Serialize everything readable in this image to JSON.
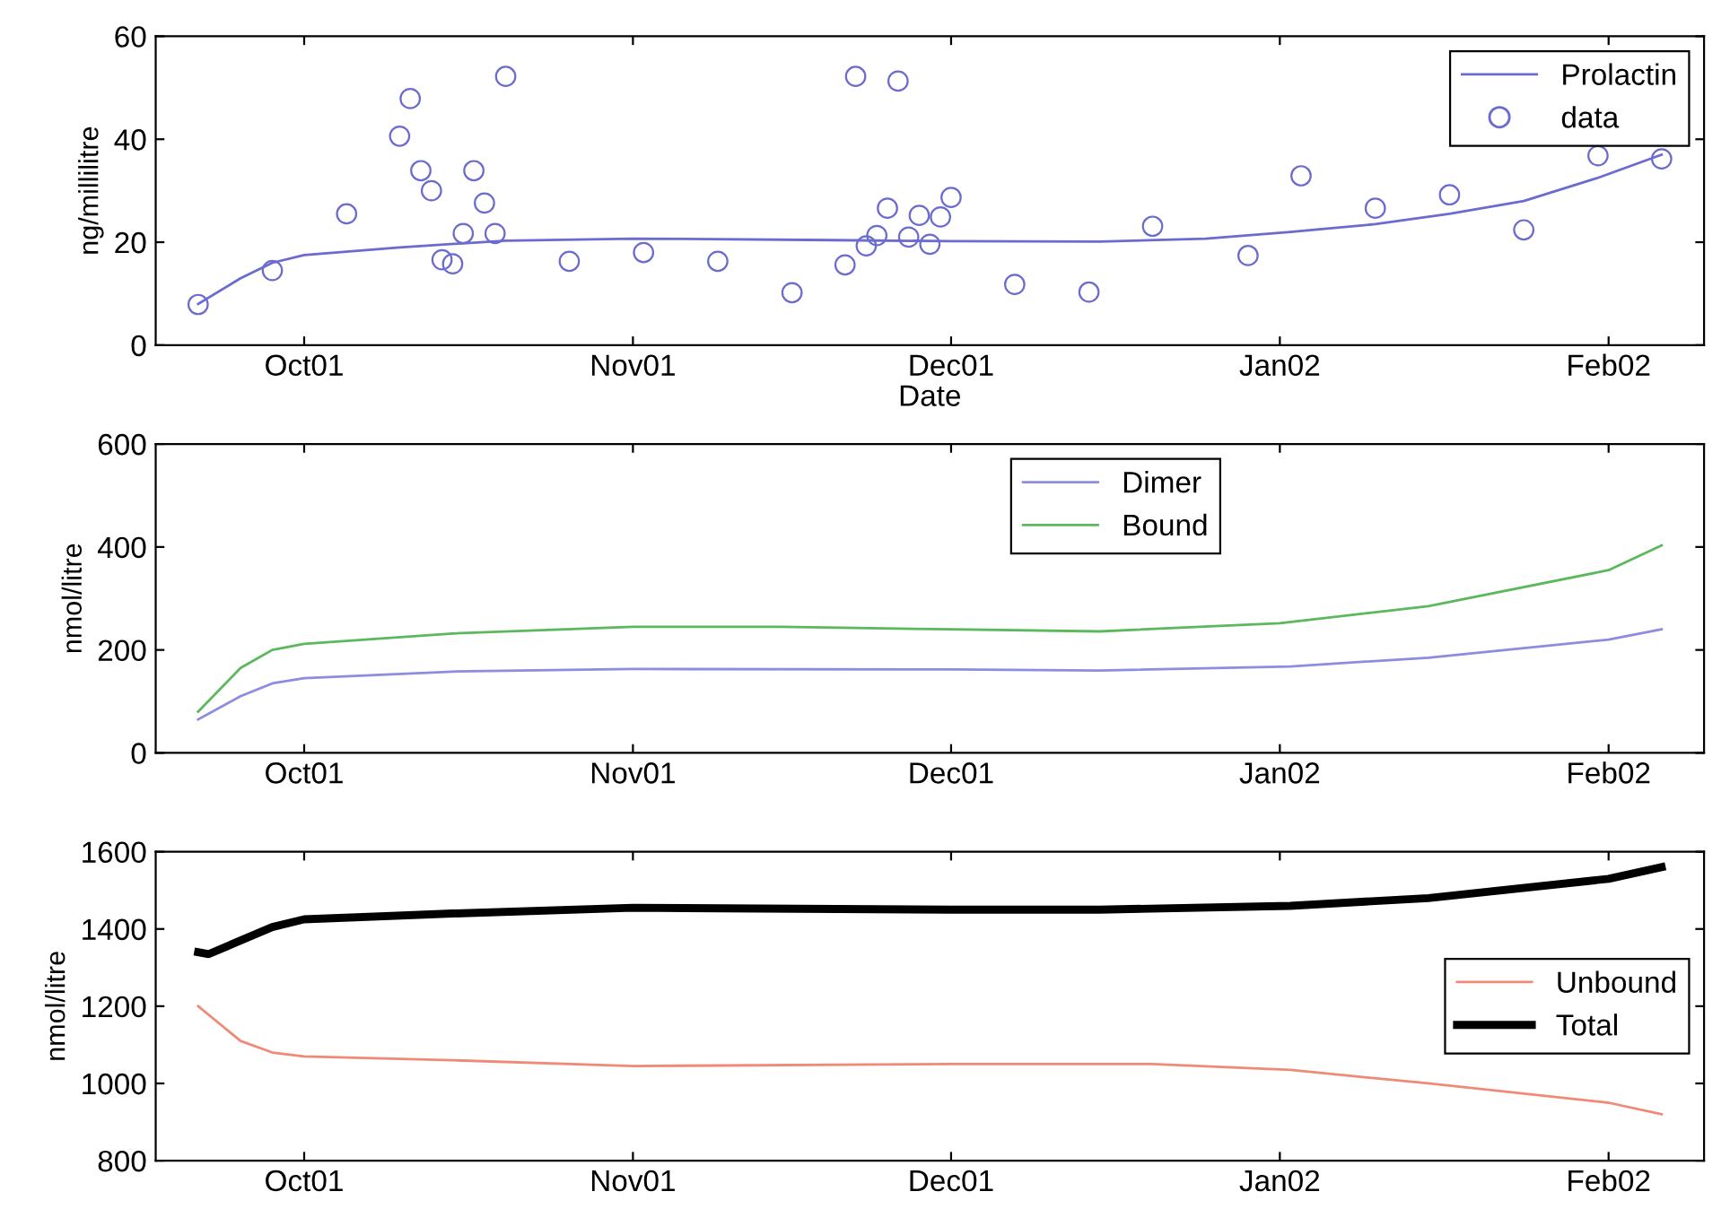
{
  "chart_data": [
    {
      "type": "line",
      "xlabel": "Date",
      "ylabel": "ng/millilitre",
      "xlim": [
        "2001-09-17",
        "2002-02-10"
      ],
      "ylim": [
        0,
        60
      ],
      "yticks": [
        0,
        20,
        40,
        60
      ],
      "xticks": [
        {
          "value": "2001-10-01",
          "label": "Oct01"
        },
        {
          "value": "2001-11-01",
          "label": "Nov01"
        },
        {
          "value": "2001-12-01",
          "label": "Dec01"
        },
        {
          "value": "2002-01-01",
          "label": "Jan02"
        },
        {
          "value": "2002-02-01",
          "label": "Feb02"
        }
      ],
      "legend": "top right",
      "grid": false,
      "series": [
        {
          "name": "Prolactin",
          "type": "line",
          "color": "#6b6bd0",
          "marker": "none",
          "line_style": "solid",
          "x": [
            "2001-09-21",
            "2001-09-25",
            "2001-09-28",
            "2001-10-01",
            "2001-10-10",
            "2001-10-20",
            "2001-11-01",
            "2001-11-20",
            "2001-12-01",
            "2001-12-15",
            "2001-12-25",
            "2002-01-02",
            "2002-01-10",
            "2002-01-17",
            "2002-01-24",
            "2002-01-31",
            "2002-02-06"
          ],
          "values": [
            8,
            13,
            16,
            17.5,
            19,
            20.3,
            20.7,
            20.4,
            20.2,
            20.1,
            20.7,
            22,
            23.5,
            25.5,
            28,
            32.5,
            37
          ]
        },
        {
          "name": "data",
          "type": "scatter",
          "color": "#6b6bd0",
          "marker": "circle",
          "x": [
            "2001-09-21",
            "2001-09-28",
            "2001-10-05",
            "2001-10-10",
            "2001-10-11",
            "2001-10-12",
            "2001-10-13",
            "2001-10-14",
            "2001-10-15",
            "2001-10-16",
            "2001-10-17",
            "2001-10-18",
            "2001-10-19",
            "2001-10-20",
            "2001-10-26",
            "2001-11-02",
            "2001-11-09",
            "2001-11-16",
            "2001-11-21",
            "2001-11-22",
            "2001-11-23",
            "2001-11-24",
            "2001-11-25",
            "2001-11-26",
            "2001-11-27",
            "2001-11-28",
            "2001-11-29",
            "2001-11-30",
            "2001-12-01",
            "2001-12-07",
            "2001-12-14",
            "2001-12-20",
            "2001-12-29",
            "2002-01-03",
            "2002-01-10",
            "2002-01-17",
            "2002-01-24",
            "2002-01-31",
            "2002-02-06"
          ],
          "values": [
            7.9,
            14.5,
            25.5,
            40.6,
            47.9,
            33.9,
            30,
            16.6,
            15.8,
            21.7,
            33.9,
            27.6,
            21.7,
            52.2,
            16.3,
            18,
            16.3,
            10.2,
            15.6,
            52.2,
            19.3,
            21.3,
            26.6,
            51.3,
            21,
            25.2,
            19.6,
            24.9,
            28.7,
            11.8,
            10.3,
            23.1,
            17.4,
            32.9,
            26.6,
            29.2,
            22.4,
            36.8,
            36.2
          ]
        }
      ]
    },
    {
      "type": "line",
      "ylabel": "nmol/litre",
      "xlim": [
        "2001-09-17",
        "2002-02-10"
      ],
      "ylim": [
        0,
        600
      ],
      "yticks": [
        0,
        200,
        400,
        600
      ],
      "xticks": [
        {
          "value": "2001-10-01",
          "label": "Oct01"
        },
        {
          "value": "2001-11-01",
          "label": "Nov01"
        },
        {
          "value": "2001-12-01",
          "label": "Dec01"
        },
        {
          "value": "2002-01-01",
          "label": "Jan02"
        },
        {
          "value": "2002-02-01",
          "label": "Feb02"
        }
      ],
      "legend": "top",
      "grid": false,
      "marker": "none",
      "line_style": "solid",
      "series": [
        {
          "name": "Dimer",
          "color": "#8c8ce0",
          "x": [
            "2001-09-21",
            "2001-09-25",
            "2001-09-28",
            "2001-10-01",
            "2001-10-15",
            "2001-11-01",
            "2001-12-01",
            "2001-12-15",
            "2002-01-02",
            "2002-01-15",
            "2002-02-01",
            "2002-02-06"
          ],
          "values": [
            65,
            110,
            135,
            145,
            158,
            163,
            162,
            160,
            168,
            185,
            220,
            240
          ]
        },
        {
          "name": "Bound",
          "color": "#5cb85c",
          "x": [
            "2001-09-21",
            "2001-09-25",
            "2001-09-28",
            "2001-10-01",
            "2001-10-15",
            "2001-11-01",
            "2001-11-15",
            "2001-12-01",
            "2001-12-15",
            "2002-01-01",
            "2002-01-15",
            "2002-02-01",
            "2002-02-06"
          ],
          "values": [
            80,
            165,
            200,
            212,
            232,
            245,
            245,
            240,
            236,
            252,
            285,
            355,
            403
          ]
        }
      ]
    },
    {
      "type": "line",
      "ylabel": "nmol/litre",
      "xlim": [
        "2001-09-17",
        "2002-02-10"
      ],
      "ylim": [
        800,
        1600
      ],
      "yticks": [
        800,
        1000,
        1200,
        1400,
        1600
      ],
      "xticks": [
        {
          "value": "2001-10-01",
          "label": "Oct01"
        },
        {
          "value": "2001-11-01",
          "label": "Nov01"
        },
        {
          "value": "2001-12-01",
          "label": "Dec01"
        },
        {
          "value": "2002-01-01",
          "label": "Jan02"
        },
        {
          "value": "2002-02-01",
          "label": "Feb02"
        }
      ],
      "legend": "right",
      "grid": false,
      "marker": "none",
      "line_style": "solid",
      "series": [
        {
          "name": "Unbound",
          "color": "#f08a78",
          "x": [
            "2001-09-21",
            "2001-09-25",
            "2001-09-28",
            "2001-10-01",
            "2001-10-15",
            "2001-11-01",
            "2001-12-01",
            "2001-12-20",
            "2002-01-02",
            "2002-01-15",
            "2002-02-01",
            "2002-02-06"
          ],
          "values": [
            1200,
            1110,
            1080,
            1070,
            1060,
            1045,
            1050,
            1050,
            1035,
            1000,
            950,
            920
          ]
        },
        {
          "name": "Total",
          "color": "#000000",
          "x": [
            "2001-09-21",
            "2001-09-22",
            "2001-09-25",
            "2001-09-28",
            "2001-10-01",
            "2001-10-15",
            "2001-11-01",
            "2001-12-01",
            "2001-12-15",
            "2002-01-02",
            "2002-01-15",
            "2002-02-01",
            "2002-02-06"
          ],
          "values": [
            1340,
            1335,
            1370,
            1405,
            1425,
            1440,
            1455,
            1450,
            1450,
            1460,
            1480,
            1530,
            1560
          ]
        }
      ]
    }
  ]
}
